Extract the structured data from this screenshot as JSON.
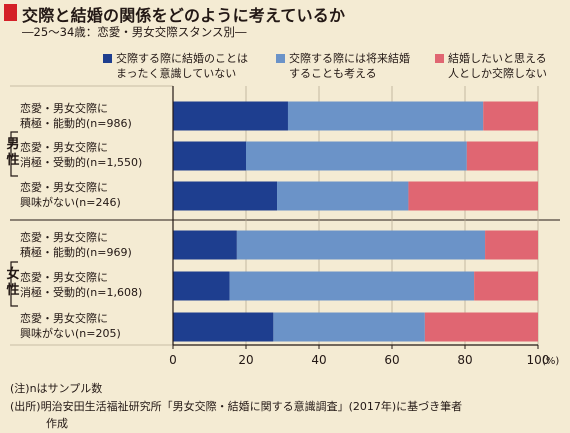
{
  "header": {
    "title": "交際と結婚の関係をどのように考えているか",
    "subtitle": "―25～34歳：恋愛・男女交際スタンス別―"
  },
  "colors": {
    "background": "#f4ebd3",
    "title_mark": "#d42027",
    "series": [
      "#1e3e8f",
      "#6b93c8",
      "#e06672"
    ],
    "grid": "#b9ad94",
    "axis": "#231815"
  },
  "chart_data": {
    "type": "bar",
    "orientation": "horizontal",
    "stacked": true,
    "groups": [
      {
        "label_top": "男",
        "label_bottom": "性",
        "categories": [
          0,
          1,
          2
        ]
      },
      {
        "label_top": "女",
        "label_bottom": "性",
        "categories": [
          3,
          4,
          5
        ]
      }
    ],
    "categories": [
      {
        "line1": "恋愛・男女交際に",
        "line2": "積極・能動的(n=986)"
      },
      {
        "line1": "恋愛・男女交際に",
        "line2": "消極・受動的(n=1,550)"
      },
      {
        "line1": "恋愛・男女交際に",
        "line2": "興味がない(n=246)"
      },
      {
        "line1": "恋愛・男女交際に",
        "line2": "積極・能動的(n=969)"
      },
      {
        "line1": "恋愛・男女交際に",
        "line2": "消極・受動的(n=1,608)"
      },
      {
        "line1": "恋愛・男女交際に",
        "line2": "興味がない(n=205)"
      }
    ],
    "series": [
      {
        "name_line1": "交際する際に結婚のことは",
        "name_line2": "まったく意識していない",
        "values": [
          31.5,
          20,
          28.5,
          17.5,
          15.5,
          27.5
        ]
      },
      {
        "name_line1": "交際する際には将来結婚",
        "name_line2": "することも考える",
        "values": [
          53.5,
          60.5,
          36,
          68,
          67,
          41.5
        ]
      },
      {
        "name_line1": "結婚したいと思える",
        "name_line2": "人としか交際しない",
        "values": [
          15,
          19.5,
          35.5,
          14.5,
          17.5,
          31
        ]
      }
    ],
    "xlim": [
      0,
      100
    ],
    "xticks": [
      0,
      20,
      40,
      60,
      80,
      100
    ],
    "xunit": "(%)",
    "grid": true,
    "legend_position": "top"
  },
  "notes": {
    "note1": "(注)nはサンプル数",
    "source": "(出所)明治安田生活福祉研究所「男女交際・結婚に関する意識調査」(2017年)に基づき筆者",
    "source_cont": "作成"
  }
}
